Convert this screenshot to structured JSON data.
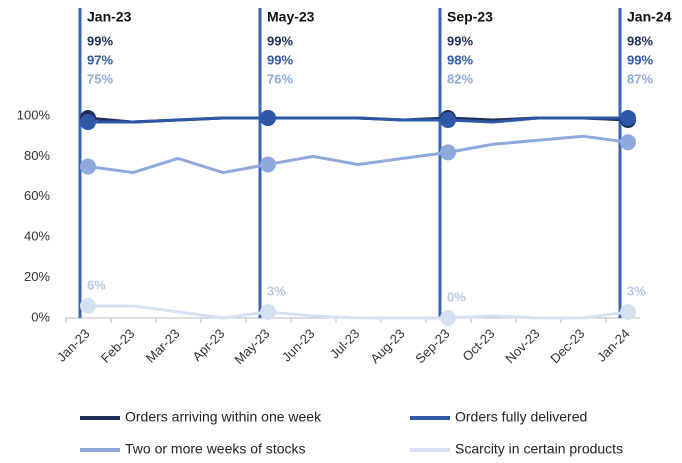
{
  "chart_data": {
    "type": "line",
    "categories": [
      "Jan-23",
      "Feb-23",
      "Mar-23",
      "Apr-23",
      "May-23",
      "Jun-23",
      "Jul-23",
      "Aug-23",
      "Sep-23",
      "Oct-23",
      "Nov-23",
      "Dec-23",
      "Jan-24"
    ],
    "highlight_indices": [
      0,
      4,
      8,
      12
    ],
    "series": [
      {
        "name": "Orders arriving within one week",
        "color": "#1f2d5a",
        "values": [
          99,
          97,
          98,
          99,
          99,
          99,
          99,
          98,
          99,
          98,
          99,
          99,
          98
        ],
        "value_labels": [
          "99%",
          null,
          null,
          null,
          "99%",
          null,
          null,
          null,
          "99%",
          null,
          null,
          null,
          "98%"
        ]
      },
      {
        "name": "Orders fully delivered",
        "color": "#2e57a8",
        "values": [
          97,
          97,
          98,
          99,
          99,
          99,
          99,
          98,
          98,
          97,
          99,
          99,
          99
        ],
        "value_labels": [
          "97%",
          null,
          null,
          null,
          "99%",
          null,
          null,
          null,
          "98%",
          null,
          null,
          null,
          "99%"
        ]
      },
      {
        "name": "Two or more weeks of stocks",
        "color": "#8fa9dc",
        "values": [
          75,
          72,
          79,
          72,
          76,
          80,
          76,
          79,
          82,
          86,
          88,
          90,
          87
        ],
        "value_labels": [
          "75%",
          null,
          null,
          null,
          "76%",
          null,
          null,
          null,
          "82%",
          null,
          null,
          null,
          "87%"
        ]
      },
      {
        "name": "Scarcity in certain products",
        "color": "#d6e0f3",
        "values": [
          6,
          6,
          3,
          0,
          3,
          1,
          0,
          0,
          0,
          1,
          0,
          0,
          3
        ],
        "value_labels": [
          "6%",
          null,
          null,
          null,
          "3%",
          null,
          null,
          null,
          "0%",
          null,
          null,
          null,
          "3%"
        ]
      }
    ],
    "ylim": [
      0,
      150
    ],
    "yticks": [
      {
        "value": 0,
        "label": "0%"
      },
      {
        "value": 20,
        "label": "20%"
      },
      {
        "value": 40,
        "label": "40%"
      },
      {
        "value": 60,
        "label": "60%"
      },
      {
        "value": 80,
        "label": "80%"
      },
      {
        "value": 100,
        "label": "100%"
      }
    ]
  }
}
